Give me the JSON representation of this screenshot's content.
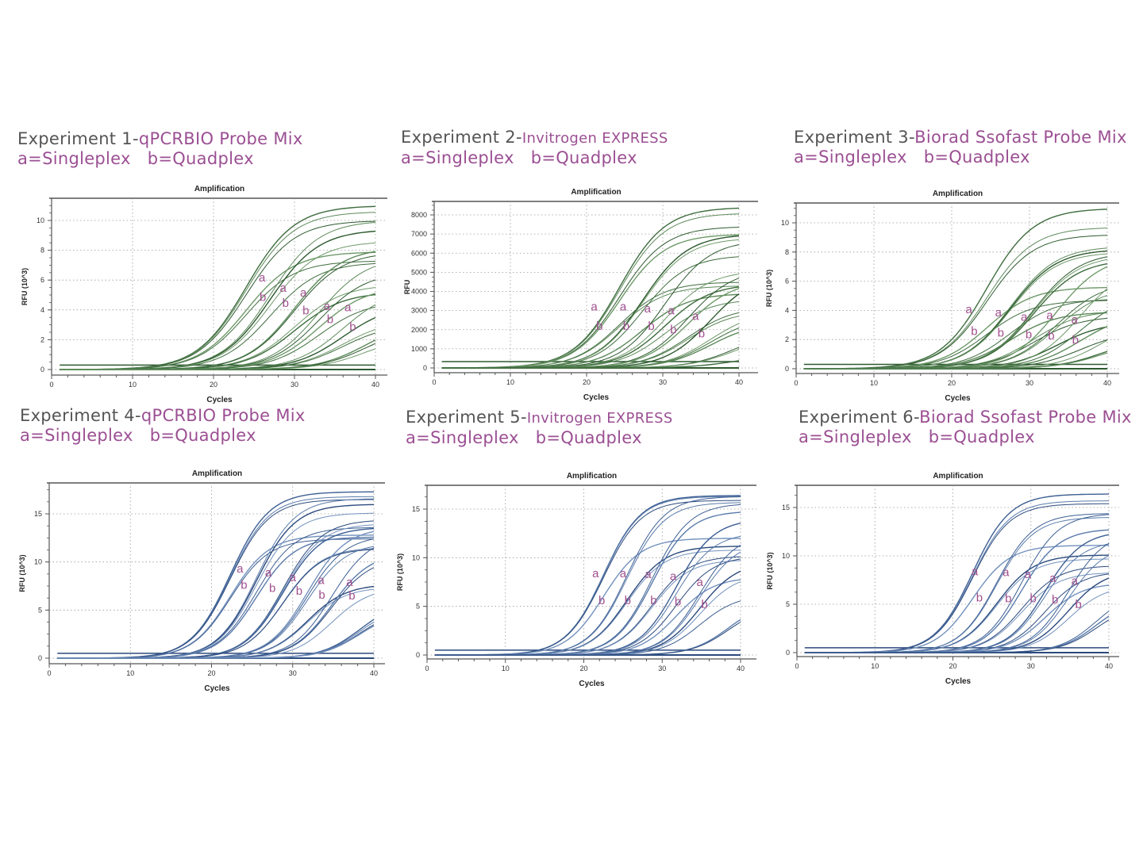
{
  "colors": {
    "title_gray": "#555555",
    "title_purple": "#9b4f93",
    "label_purple": "#a0508f",
    "green_curve": "#3f6d3f",
    "blue_curve": "#3d5f93"
  },
  "titles": [
    {
      "prefix": "Experiment 1-",
      "name": "qPCRBIO Probe Mix",
      "legend": "a=Singleplex   b=Quadplex"
    },
    {
      "prefix": "Experiment 2-",
      "name": "Invitrogen EXPRESS",
      "legend": "a=Singleplex   b=Quadplex"
    },
    {
      "prefix": "Experiment 3-",
      "name": "Biorad Ssofast Probe Mix",
      "legend": "a=Singleplex   b=Quadplex"
    },
    {
      "prefix": "Experiment 4-",
      "name": "qPCRBIO Probe Mix",
      "legend": "a=Singleplex   b=Quadplex"
    },
    {
      "prefix": "Experiment 5-",
      "name": "Invitrogen EXPRESS",
      "legend": "a=Singleplex   b=Quadplex"
    },
    {
      "prefix": "Experiment 6-",
      "name": "Biorad Ssofast Probe Mix",
      "legend": "a=Singleplex   b=Quadplex"
    }
  ],
  "chart_data": [
    {
      "type": "line",
      "title": "Amplification",
      "xlabel": "Cycles",
      "ylabel": "RFU (10^3)",
      "xlim": [
        0,
        40
      ],
      "xticks": [
        0,
        10,
        20,
        30,
        40
      ],
      "ylim": [
        -0.3,
        11.3
      ],
      "yticks": [
        0,
        2,
        4,
        6,
        8,
        10
      ],
      "grid": true,
      "color": "green",
      "curve_model": "sigmoid",
      "slope": 3,
      "threshold": 0.3,
      "groups": [
        {
          "midpoint": 24,
          "plateaus": [
            11,
            10.6,
            10,
            7.9,
            7.3
          ]
        },
        {
          "midpoint": 27,
          "plateaus": [
            10,
            9.4,
            8.6,
            7.2
          ]
        },
        {
          "midpoint": 30,
          "plateaus": [
            8.2,
            7.9,
            5.7,
            5.2
          ]
        },
        {
          "midpoint": 33,
          "plateaus": [
            7.6,
            6.6,
            5.6,
            4.6
          ]
        },
        {
          "midpoint": 36,
          "plateaus": [
            5.5,
            4.4,
            3.4,
            3.1
          ]
        },
        {
          "midpoint": 39,
          "plateaus": [
            3.4,
            3,
            2.4
          ]
        }
      ],
      "annotations_a": [
        [
          26,
          5.9
        ],
        [
          28.6,
          5.2
        ],
        [
          31.1,
          4.9
        ],
        [
          34,
          4
        ],
        [
          36.6,
          3.9
        ]
      ],
      "annotations_b": [
        [
          26.1,
          4.6
        ],
        [
          28.9,
          4.2
        ],
        [
          31.4,
          3.7
        ],
        [
          34.4,
          3.1
        ],
        [
          37.2,
          2.6
        ]
      ]
    },
    {
      "type": "line",
      "title": "Amplification",
      "xlabel": "Cycles",
      "ylabel": "RFU",
      "xlim": [
        0,
        40
      ],
      "xticks": [
        0,
        10,
        20,
        30,
        40
      ],
      "ylim": [
        -200,
        8600
      ],
      "yticks": [
        0,
        1000,
        2000,
        3000,
        4000,
        5000,
        6000,
        7000,
        8000
      ],
      "grid": true,
      "color": "green",
      "curve_model": "sigmoid",
      "slope": 3,
      "threshold": 330,
      "groups": [
        {
          "midpoint": 24.3,
          "plateaus": [
            8400,
            8100,
            7400,
            7000,
            4500,
            4300
          ]
        },
        {
          "midpoint": 27.3,
          "plateaus": [
            7000,
            6800,
            5900,
            3900
          ]
        },
        {
          "midpoint": 30.3,
          "plateaus": [
            6700,
            5100,
            4400,
            3600
          ]
        },
        {
          "midpoint": 33.3,
          "plateaus": [
            5200,
            4600,
            3200,
            3000
          ]
        },
        {
          "midpoint": 36.3,
          "plateaus": [
            5000,
            3000,
            2700,
            2400
          ]
        },
        {
          "midpoint": 39.5,
          "plateaus": [
            2000,
            1800,
            700
          ]
        }
      ],
      "annotations_a": [
        [
          21,
          3000
        ],
        [
          24.8,
          3000
        ],
        [
          28,
          2900
        ],
        [
          31.1,
          2800
        ],
        [
          34.3,
          2500
        ]
      ],
      "annotations_b": [
        [
          21.7,
          2000
        ],
        [
          25.2,
          2000
        ],
        [
          28.5,
          2000
        ],
        [
          31.4,
          1800
        ],
        [
          35.1,
          1600
        ]
      ]
    },
    {
      "type": "line",
      "title": "Amplification",
      "xlabel": "Cycles",
      "ylabel": "RFU (10^3)",
      "xlim": [
        0,
        40
      ],
      "xticks": [
        0,
        10,
        20,
        30,
        40
      ],
      "ylim": [
        -0.3,
        11.3
      ],
      "yticks": [
        0,
        2,
        4,
        6,
        8,
        10
      ],
      "grid": true,
      "color": "green",
      "curve_model": "sigmoid",
      "slope": 3,
      "threshold": 0.3,
      "groups": [
        {
          "midpoint": 24.5,
          "plateaus": [
            11,
            9.7,
            9.2,
            5.6,
            4.7
          ]
        },
        {
          "midpoint": 27.5,
          "plateaus": [
            8.4,
            8.2,
            8,
            4.8,
            3.9
          ]
        },
        {
          "midpoint": 30.5,
          "plateaus": [
            8,
            7.8,
            7.5,
            4,
            3.6
          ]
        },
        {
          "midpoint": 33.5,
          "plateaus": [
            7.8,
            6,
            5.6,
            3.2
          ]
        },
        {
          "midpoint": 36.5,
          "plateaus": [
            7.2,
            5.2,
            3.8,
            2.6
          ]
        },
        {
          "midpoint": 39.5,
          "plateaus": [
            3.6,
            2.2,
            2
          ]
        }
      ],
      "annotations_a": [
        [
          22.2,
          3.8
        ],
        [
          26,
          3.6
        ],
        [
          29.3,
          3.3
        ],
        [
          32.6,
          3.4
        ],
        [
          35.8,
          3.1
        ]
      ],
      "annotations_b": [
        [
          22.9,
          2.3
        ],
        [
          26.3,
          2.2
        ],
        [
          29.9,
          2.1
        ],
        [
          32.8,
          2
        ],
        [
          35.9,
          1.7
        ]
      ]
    },
    {
      "type": "line",
      "title": "Amplification",
      "xlabel": "Cycles",
      "ylabel": "RFU (10^3)",
      "xlim": [
        0,
        40
      ],
      "xticks": [
        0,
        10,
        20,
        30,
        40
      ],
      "ylim": [
        -0.4,
        17.6
      ],
      "yticks": [
        0,
        5,
        10,
        15
      ],
      "grid": true,
      "color": "blue",
      "curve_model": "sigmoid",
      "slope": 2.4,
      "threshold": 0.5,
      "groups": [
        {
          "midpoint": 22.3,
          "plateaus": [
            17.3,
            16.8,
            16.5,
            12.8,
            12.4
          ]
        },
        {
          "midpoint": 25.5,
          "plateaus": [
            16.6,
            16,
            15.1,
            13.6,
            12.6
          ]
        },
        {
          "midpoint": 28.8,
          "plateaus": [
            14.4,
            14,
            13.6,
            11.5,
            11.4
          ]
        },
        {
          "midpoint": 31.8,
          "plateaus": [
            13.6,
            12.8,
            12,
            7.7,
            7.4
          ]
        },
        {
          "midpoint": 34.8,
          "plateaus": [
            12.8,
            11,
            10.5,
            7.4
          ]
        },
        {
          "midpoint": 38.3,
          "plateaus": [
            6,
            5.6,
            5.2,
            5
          ]
        }
      ],
      "annotations_a": [
        [
          23.5,
          8.9
        ],
        [
          27,
          8.5
        ],
        [
          30,
          8
        ],
        [
          33.5,
          7.7
        ],
        [
          37,
          7.5
        ]
      ],
      "annotations_b": [
        [
          24,
          7.2
        ],
        [
          27.5,
          6.9
        ],
        [
          30.8,
          6.6
        ],
        [
          33.6,
          6.2
        ],
        [
          37.3,
          6.1
        ]
      ]
    },
    {
      "type": "line",
      "title": "Amplification",
      "xlabel": "Cycles",
      "ylabel": "RFU (10^3)",
      "xlim": [
        0,
        40
      ],
      "xticks": [
        0,
        10,
        20,
        30,
        40
      ],
      "ylim": [
        -0.4,
        16.9
      ],
      "yticks": [
        0,
        5,
        10,
        15
      ],
      "grid": true,
      "color": "blue",
      "curve_model": "sigmoid",
      "slope": 2.4,
      "threshold": 0.5,
      "groups": [
        {
          "midpoint": 22.5,
          "plateaus": [
            16.4,
            16.3,
            15.9,
            12
          ]
        },
        {
          "midpoint": 25.5,
          "plateaus": [
            16.3,
            15.7,
            11.2,
            10.8
          ]
        },
        {
          "midpoint": 28.7,
          "plateaus": [
            15.6,
            14.8,
            10.2,
            9.8
          ]
        },
        {
          "midpoint": 31.8,
          "plateaus": [
            14,
            12.6,
            10.2,
            8
          ]
        },
        {
          "midpoint": 34.8,
          "plateaus": [
            12.6,
            11.8,
            9.6,
            8.4,
            6.2
          ]
        },
        {
          "midpoint": 38.5,
          "plateaus": [
            5.6,
            5.2
          ]
        }
      ],
      "annotations_a": [
        [
          21.5,
          8
        ],
        [
          25,
          8
        ],
        [
          28.2,
          7.9
        ],
        [
          31.4,
          7.7
        ],
        [
          34.8,
          7.1
        ]
      ],
      "annotations_b": [
        [
          22.3,
          5.2
        ],
        [
          25.6,
          5.2
        ],
        [
          28.9,
          5.2
        ],
        [
          32,
          5.1
        ],
        [
          35.4,
          4.8
        ]
      ]
    },
    {
      "type": "line",
      "title": "Amplification",
      "xlabel": "Cycles",
      "ylabel": "RFU (10^3)",
      "xlim": [
        0,
        40
      ],
      "xticks": [
        0,
        10,
        20,
        30,
        40
      ],
      "ylim": [
        -0.4,
        16.9
      ],
      "yticks": [
        0,
        5,
        10,
        15
      ],
      "grid": true,
      "color": "blue",
      "curve_model": "sigmoid",
      "slope": 2.4,
      "threshold": 0.5,
      "groups": [
        {
          "midpoint": 22.5,
          "plateaus": [
            16.4,
            15.7,
            15.4,
            11.1
          ]
        },
        {
          "midpoint": 25.6,
          "plateaus": [
            14.4,
            14,
            10.1,
            9.7
          ]
        },
        {
          "midpoint": 28.8,
          "plateaus": [
            14.4,
            12.8,
            9,
            8.3
          ]
        },
        {
          "midpoint": 31.8,
          "plateaus": [
            12.6,
            11.6,
            8.4,
            7.2
          ]
        },
        {
          "midpoint": 34.8,
          "plateaus": [
            12.6,
            11.2,
            8.6,
            7
          ]
        },
        {
          "midpoint": 38.5,
          "plateaus": [
            6.6,
            5.8,
            5.2
          ]
        }
      ],
      "annotations_a": [
        [
          22.8,
          8
        ],
        [
          26.8,
          7.9
        ],
        [
          29.6,
          7.7
        ],
        [
          32.8,
          7.3
        ],
        [
          35.6,
          7
        ]
      ],
      "annotations_b": [
        [
          23.4,
          5.3
        ],
        [
          27.1,
          5.2
        ],
        [
          30.3,
          5.2
        ],
        [
          33.1,
          5.1
        ],
        [
          36.1,
          4.6
        ]
      ]
    }
  ]
}
